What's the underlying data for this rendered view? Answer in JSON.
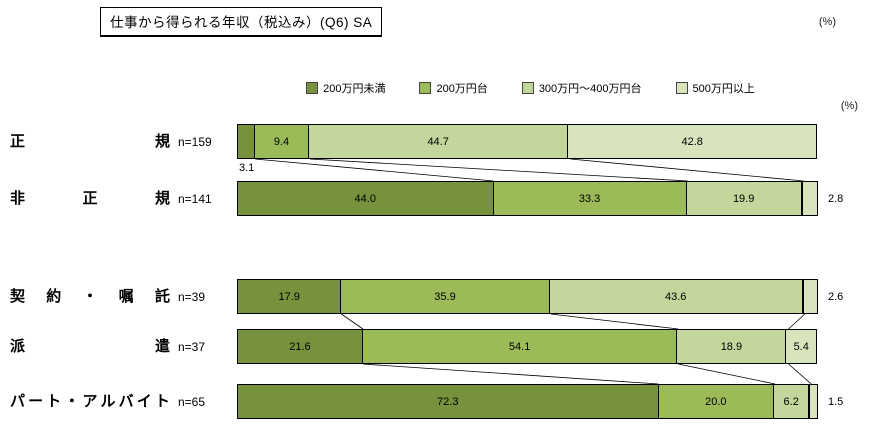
{
  "title": "仕事から得られる年収（税込み）(Q6) SA",
  "unit_note_top": "(%)",
  "unit_note_axis": "(%)",
  "legend": [
    {
      "label": "200万円未満",
      "color": "#76923c"
    },
    {
      "label": "200万円台",
      "color": "#9bbb59"
    },
    {
      "label": "300万円～400万円台",
      "color": "#c3d69b"
    },
    {
      "label": "500万円以上",
      "color": "#d7e4bc"
    }
  ],
  "chart_data": {
    "type": "bar",
    "orientation": "horizontal",
    "stacked": true,
    "unit": "%",
    "xlim": [
      0,
      100
    ],
    "categories": [
      "正規",
      "非正規",
      "契約・嘱託",
      "派遣",
      "パート・アルバイト"
    ],
    "n_labels": [
      "n=159",
      "n=141",
      "n=39",
      "n=37",
      "n=65"
    ],
    "series": [
      {
        "name": "200万円未満",
        "color": "#76923c",
        "values": [
          3.1,
          44.0,
          17.9,
          21.6,
          72.3
        ]
      },
      {
        "name": "200万円台",
        "color": "#9bbb59",
        "values": [
          9.4,
          33.3,
          35.9,
          54.1,
          20.0
        ]
      },
      {
        "name": "300万円～400万円台",
        "color": "#c3d69b",
        "values": [
          44.7,
          19.9,
          43.6,
          18.9,
          6.2
        ]
      },
      {
        "name": "500万円以上",
        "color": "#d7e4bc",
        "values": [
          42.8,
          2.8,
          2.6,
          5.4,
          1.5
        ]
      }
    ],
    "groups": [
      [
        0,
        1
      ],
      [
        2,
        3,
        4
      ]
    ]
  }
}
